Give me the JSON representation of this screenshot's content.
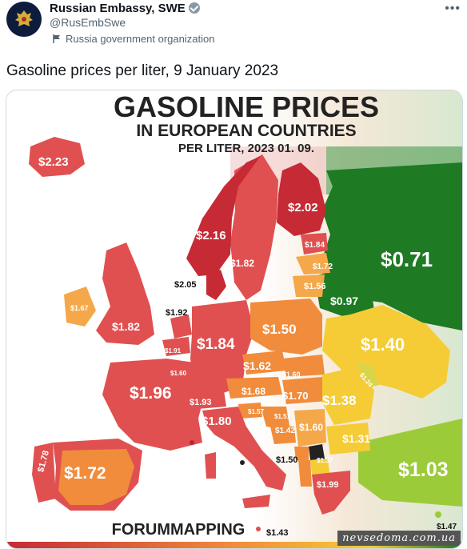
{
  "tweet": {
    "author_name": "Russian Embassy, SWE",
    "handle": "@RusEmbSwe",
    "label": "Russia government organization",
    "text": "Gasoline prices per liter, 9 January 2023"
  },
  "map": {
    "title_line1": "GASOLINE PRICES",
    "title_line2": "IN EUROPEAN COUNTRIES",
    "title_line3": "PER LITER, 2023 01. 09.",
    "credit": "FORUMMAPPING",
    "watermark": "nevsedoma.com.ua",
    "colors": {
      "red": "#e05050",
      "dark_red": "#c52a35",
      "orange": "#f08c3c",
      "light_orange": "#f5a84a",
      "yellow": "#f5cc35",
      "yellow_green": "#d7d64a",
      "light_green": "#9ccb3a",
      "dark_green": "#1e7a23"
    },
    "prices": {
      "iceland": "$2.23",
      "norway": "$2.16",
      "sweden": "$1.82",
      "finland": "$2.02",
      "estonia": "$1.84",
      "latvia": "$1.72",
      "lithuania": "$1.56",
      "denmark": "$2.05",
      "russia": "$0.71",
      "belarus": "$0.97",
      "ireland": "$1.67",
      "uk": "$1.82",
      "netherlands": "$1.92",
      "belgium": "$1.91",
      "luxembourg": "$1.60",
      "germany": "$1.84",
      "poland": "$1.50",
      "ukraine": "$1.40",
      "france": "$1.96",
      "czechia": "$1.62",
      "slovakia": "$1.60",
      "austria": "$1.68",
      "hungary": "$1.70",
      "moldova": "$1.24",
      "romania": "$1.38",
      "switzerland": "$1.93",
      "slovenia": "$1.57",
      "croatia": "$1.51",
      "bosnia": "$1.42",
      "serbia": "$1.60",
      "bulgaria": "$1.31",
      "italy": "$1.80",
      "portugal": "$1.78",
      "spain": "$1.72",
      "turkey": "$1.03",
      "montenegro": "$1.50",
      "north_macedonia": "$1.37",
      "greece": "$1.99",
      "malta": "$1.43",
      "cyprus": "$1.47"
    }
  }
}
